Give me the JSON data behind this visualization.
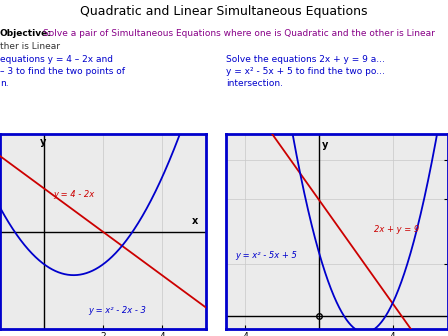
{
  "title": "Quadratic and Linear Simultaneous Equations",
  "title_fontsize": 9,
  "bg_color": "#ffffff",
  "grid_color": "#c8c8c8",
  "border_color": "#0000cc",
  "left_plot": {
    "xlim": [
      -1.5,
      5.5
    ],
    "ylim": [
      -9,
      9
    ],
    "xticks": [
      2,
      4
    ],
    "linear_label": "y = 4 - 2x",
    "quadratic_label": "y = x² - 2x - 3",
    "linear_color": "#cc0000",
    "quadratic_color": "#0000cc"
  },
  "right_plot": {
    "xlim": [
      -5,
      7
    ],
    "ylim": [
      -1,
      14
    ],
    "xticks": [
      -4,
      4
    ],
    "yticks": [
      4,
      9,
      12
    ],
    "linear_label": "2x + y = 9",
    "quadratic_label": "y = x² - 5x + 5",
    "linear_color": "#cc0000",
    "quadratic_color": "#0000cc"
  }
}
